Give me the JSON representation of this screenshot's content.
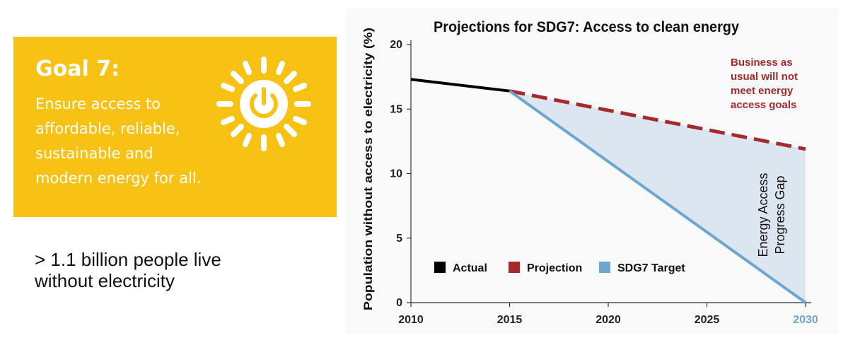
{
  "goal": {
    "title": "Goal 7:",
    "lines": [
      "Ensure access to",
      "affordable, reliable,",
      "sustainable and",
      "modern energy for all."
    ],
    "bg_color": "#f7c214"
  },
  "fact": {
    "lines": [
      "> 1.1 billion people live",
      "without electricity"
    ]
  },
  "chart_data": {
    "type": "line",
    "title": "Projections for SDG7: Access to clean energy",
    "ylabel": "Population without access to electricity (%)",
    "xlabel": "",
    "xlim": [
      2010,
      2030
    ],
    "ylim": [
      0,
      20
    ],
    "x_ticks": [
      "2010",
      "2015",
      "2020",
      "2025",
      "2030"
    ],
    "y_ticks": [
      "0",
      "5",
      "10",
      "15",
      "20"
    ],
    "highlight_tick": "2030",
    "highlight_color": "#6da6cf",
    "grid": false,
    "legend_position": "bottom-left",
    "series": [
      {
        "name": "Actual",
        "style": "solid",
        "color": "#000000",
        "x": [
          2010,
          2015
        ],
        "y": [
          17.3,
          16.4
        ]
      },
      {
        "name": "Projection",
        "style": "dashed",
        "color": "#a52a2e",
        "x": [
          2015,
          2030
        ],
        "y": [
          16.4,
          11.9
        ]
      },
      {
        "name": "SDG7 Target",
        "style": "solid",
        "color": "#6da6cf",
        "x": [
          2015,
          2030
        ],
        "y": [
          16.4,
          0
        ]
      }
    ],
    "gap_fill_color": "#dce6f0",
    "annotations": {
      "business_as_usual": [
        "Business as",
        "usual will not",
        "meet energy",
        "access goals"
      ],
      "gap_label": [
        "Energy Access",
        "Progress Gap"
      ]
    }
  }
}
